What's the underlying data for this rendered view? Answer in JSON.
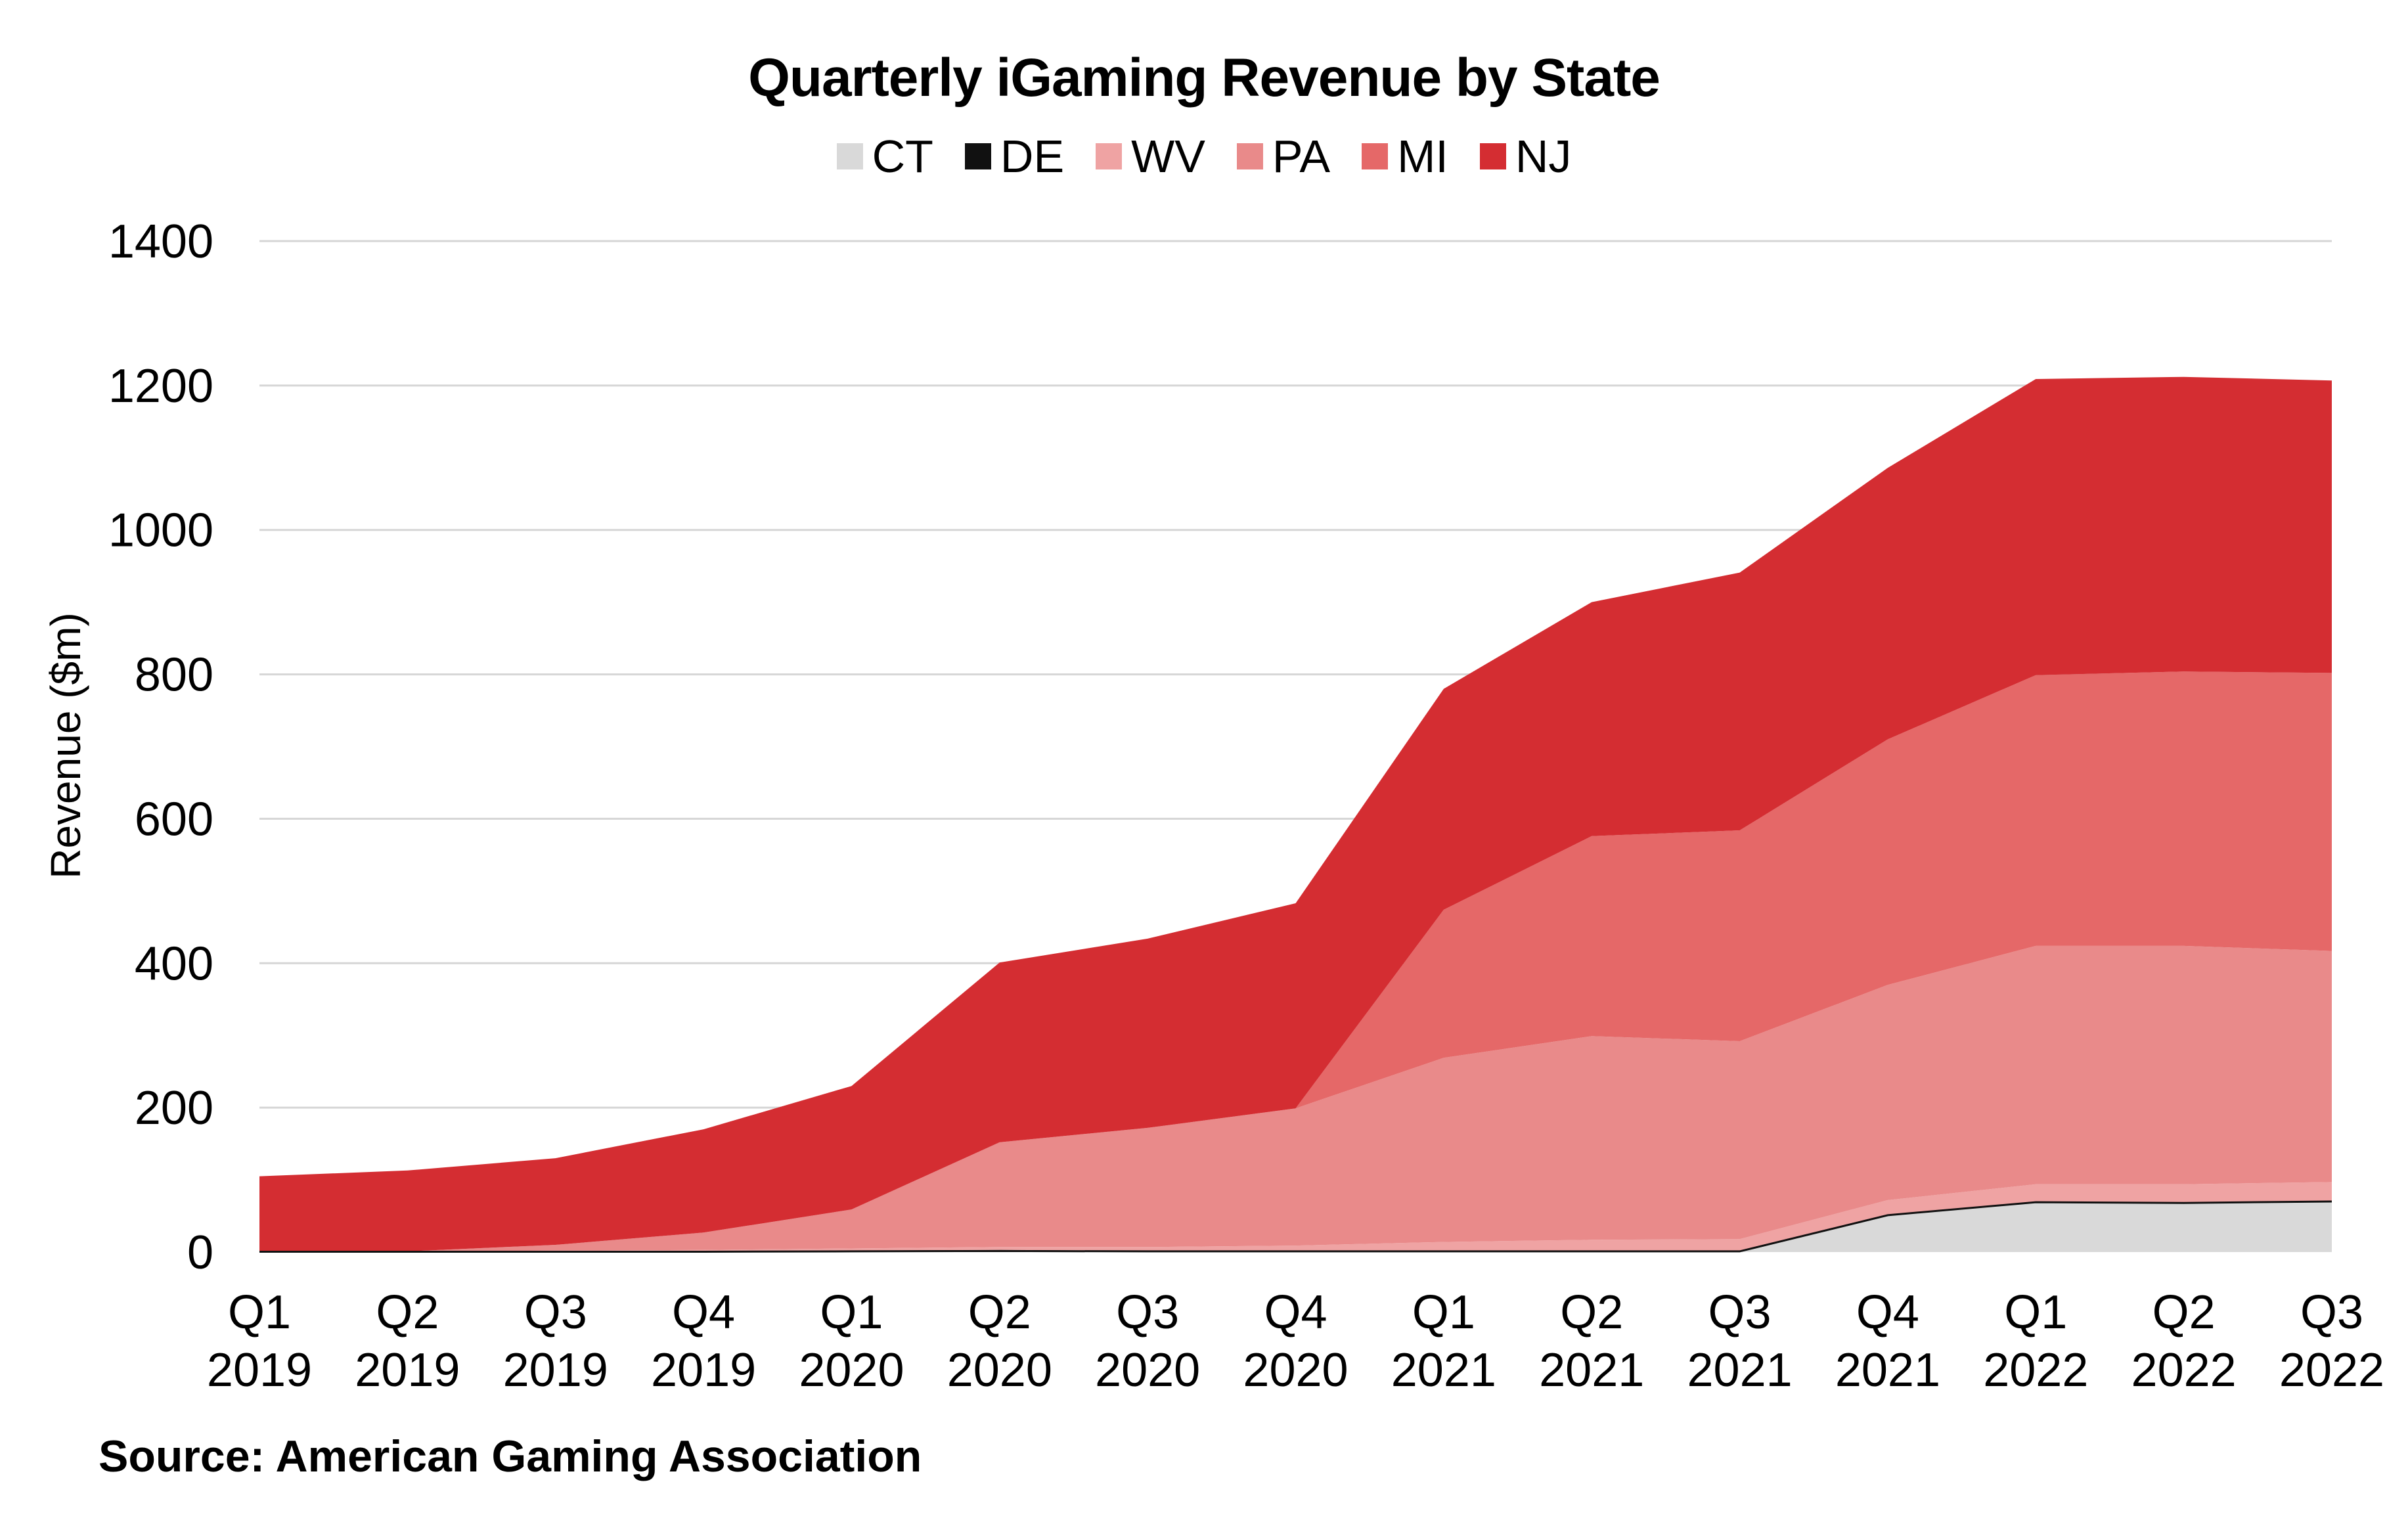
{
  "source": "Source: American Gaming Association",
  "chart_data": {
    "type": "area",
    "stacked": true,
    "title": "Quarterly iGaming Revenue by State",
    "xlabel": "",
    "ylabel": "Revenue ($m)",
    "ylim": [
      0,
      1400
    ],
    "yticks": [
      0,
      200,
      400,
      600,
      800,
      1000,
      1200,
      1400
    ],
    "grid": "horizontal",
    "legend_position": "top-center",
    "categories": [
      [
        "Q1",
        "2019"
      ],
      [
        "Q2",
        "2019"
      ],
      [
        "Q3",
        "2019"
      ],
      [
        "Q4",
        "2019"
      ],
      [
        "Q1",
        "2020"
      ],
      [
        "Q2",
        "2020"
      ],
      [
        "Q3",
        "2020"
      ],
      [
        "Q4",
        "2020"
      ],
      [
        "Q1",
        "2021"
      ],
      [
        "Q2",
        "2021"
      ],
      [
        "Q3",
        "2021"
      ],
      [
        "Q4",
        "2021"
      ],
      [
        "Q1",
        "2022"
      ],
      [
        "Q2",
        "2022"
      ],
      [
        "Q3",
        "2022"
      ]
    ],
    "series": [
      {
        "name": "CT",
        "color": "#d9d9d9",
        "values": [
          0,
          0,
          0,
          0,
          0,
          0,
          0,
          0,
          0,
          0,
          0,
          50,
          68,
          67,
          69
        ]
      },
      {
        "name": "DE",
        "color": "#111111",
        "values": [
          1,
          1,
          1,
          1,
          2,
          3,
          2,
          2,
          2,
          2,
          2,
          2,
          2,
          2,
          2
        ]
      },
      {
        "name": "WV",
        "color": "#efa3a3",
        "values": [
          0,
          0,
          1,
          2,
          3,
          4,
          5,
          7,
          12,
          15,
          16,
          20,
          24,
          25,
          26
        ]
      },
      {
        "name": "PA",
        "color": "#e98a8a",
        "values": [
          0,
          0,
          8,
          24,
          54,
          145,
          165,
          190,
          255,
          282,
          274,
          298,
          330,
          330,
          320
        ]
      },
      {
        "name": "MI",
        "color": "#e56868",
        "values": [
          0,
          0,
          0,
          0,
          0,
          0,
          0,
          0,
          205,
          277,
          292,
          340,
          375,
          380,
          385
        ]
      },
      {
        "name": "NJ",
        "color": "#d42d32",
        "values": [
          104,
          112,
          120,
          143,
          171,
          249,
          262,
          284,
          306,
          324,
          357,
          376,
          410,
          408,
          405
        ]
      }
    ]
  }
}
